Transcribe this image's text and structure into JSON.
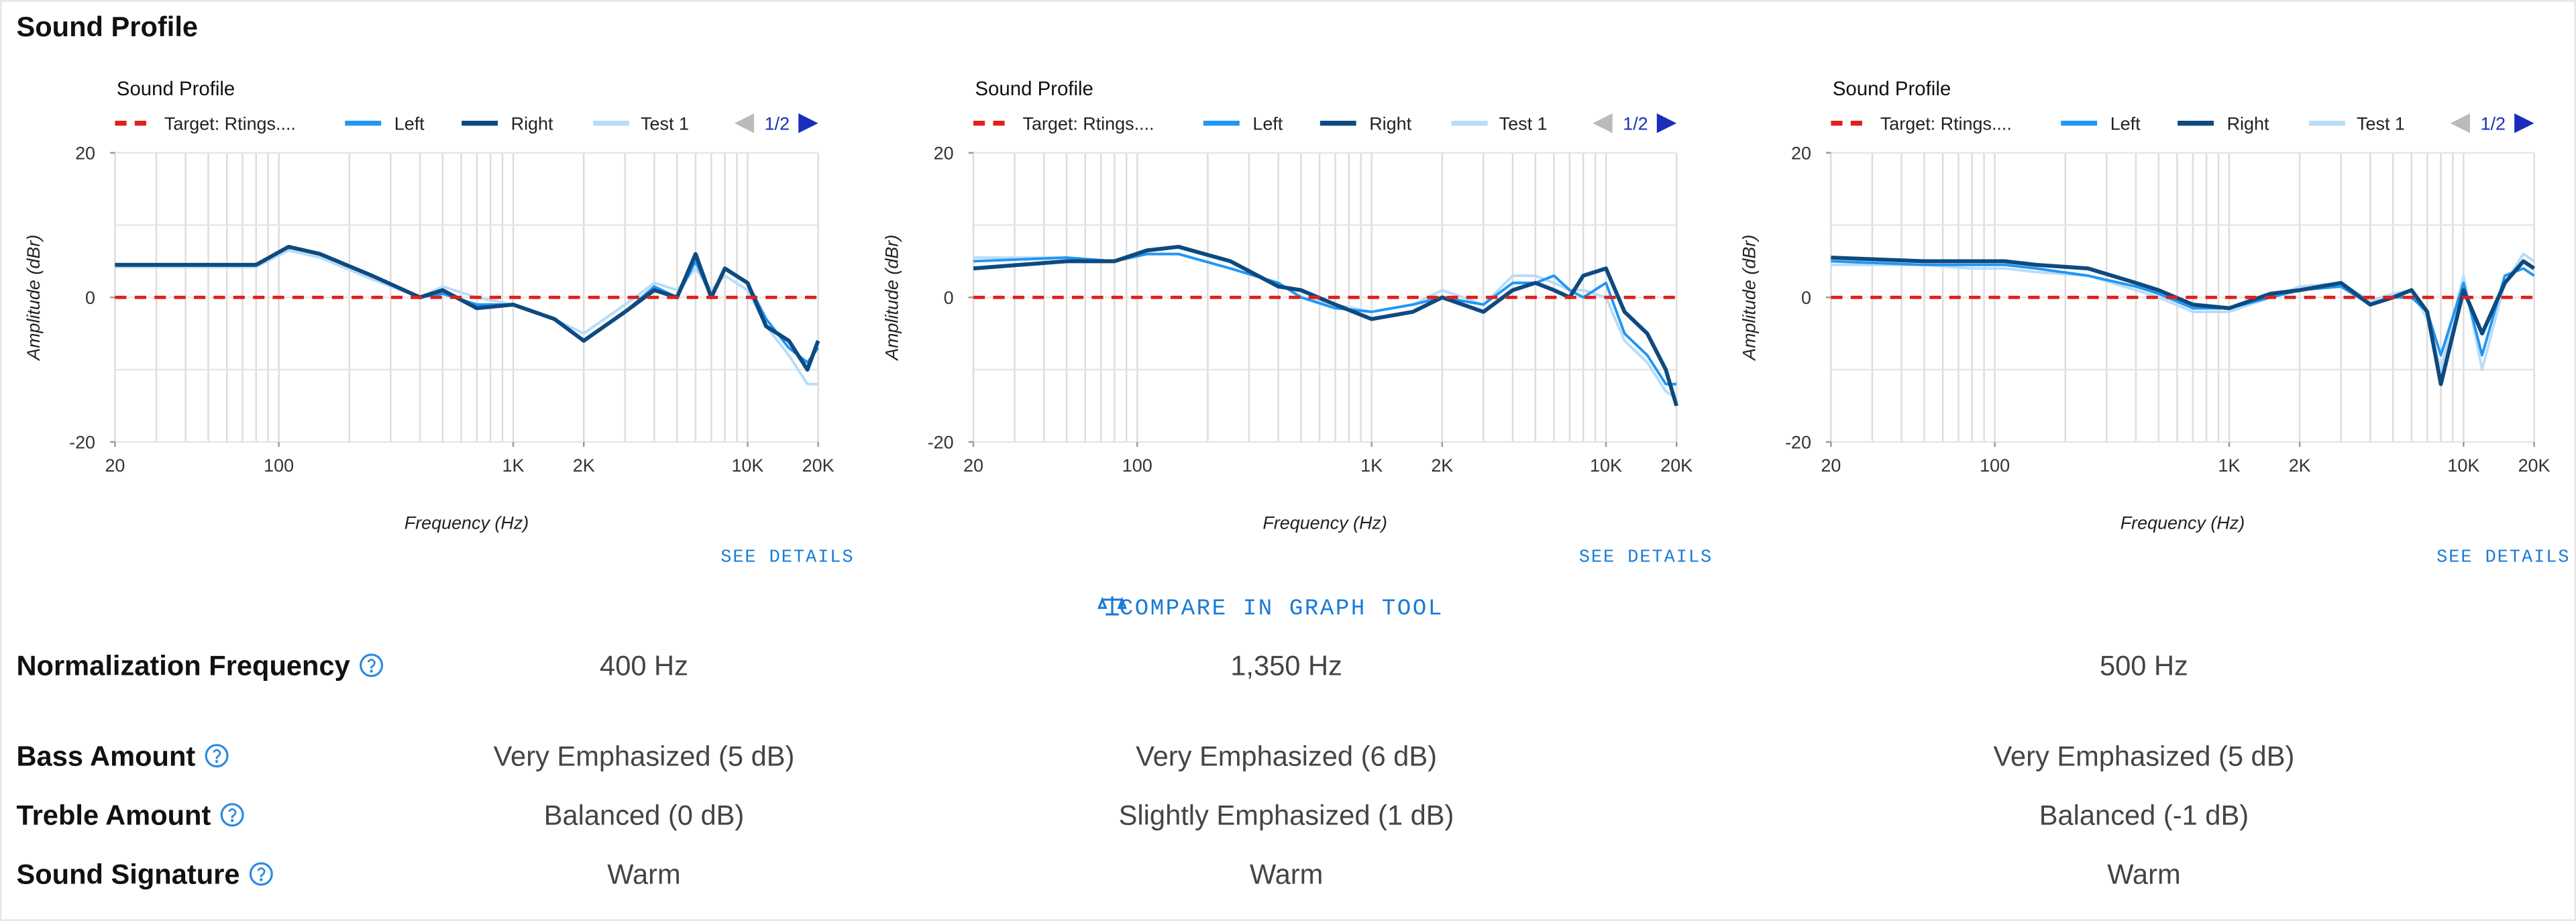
{
  "header": {
    "title": "Sound Profile"
  },
  "chart_data": [
    {
      "type": "line",
      "title": "Sound Profile",
      "legend_page": "1/2",
      "xlabel": "Frequency (Hz)",
      "ylabel": "Amplitude (dBr)",
      "xscale": "log",
      "xlim": [
        20,
        20000
      ],
      "ylim": [
        -20,
        20
      ],
      "yticks": [
        20,
        0,
        -20
      ],
      "ygrid": [
        -20,
        -10,
        0,
        10,
        20
      ],
      "xticks": [
        20,
        100,
        {
          "value": 1000,
          "label": "1K"
        },
        {
          "value": 2000,
          "label": "2K"
        },
        {
          "value": 10000,
          "label": "10K"
        },
        {
          "value": 20000,
          "label": "20K"
        }
      ],
      "xgrid": [
        20,
        30,
        40,
        50,
        60,
        70,
        80,
        90,
        100,
        200,
        300,
        400,
        500,
        600,
        700,
        800,
        900,
        1000,
        2000,
        3000,
        4000,
        5000,
        6000,
        7000,
        8000,
        9000,
        10000,
        20000
      ],
      "x": [
        20,
        50,
        80,
        110,
        150,
        250,
        400,
        500,
        700,
        1000,
        1500,
        2000,
        3000,
        4000,
        5000,
        6000,
        7000,
        8000,
        10000,
        12000,
        15000,
        18000,
        20000
      ],
      "series": [
        {
          "name": "Target: Rtings....",
          "color": "#e0201c",
          "dashed": true,
          "values": [
            0,
            0,
            0,
            0,
            0,
            0,
            0,
            0,
            0,
            0,
            0,
            0,
            0,
            0,
            0,
            0,
            0,
            0,
            0,
            0,
            0,
            0,
            0
          ]
        },
        {
          "name": "Left",
          "color": "#2196f3",
          "values": [
            4.5,
            4.5,
            4.5,
            7,
            6,
            3,
            0,
            0.5,
            -1,
            -1,
            -3,
            -6,
            -2,
            1.5,
            0,
            5,
            0,
            4,
            2,
            -3,
            -7,
            -9,
            -7
          ]
        },
        {
          "name": "Right",
          "color": "#0d4a80",
          "values": [
            4.5,
            4.5,
            4.5,
            7,
            6,
            3,
            0,
            1,
            -1.5,
            -1,
            -3,
            -6,
            -2,
            1,
            0,
            6,
            0,
            4,
            2,
            -4,
            -6,
            -10,
            -6
          ]
        },
        {
          "name": "Test 1",
          "color": "#b9dcf7",
          "values": [
            4.2,
            4.2,
            4.2,
            6.5,
            5.5,
            2.5,
            0,
            1.5,
            0,
            -1,
            -3,
            -5,
            -1,
            2,
            1,
            4,
            1,
            3,
            1,
            -4,
            -8,
            -12,
            -12
          ]
        }
      ],
      "link": "SEE DETAILS"
    },
    {
      "type": "line",
      "title": "Sound Profile",
      "legend_page": "1/2",
      "xlabel": "Frequency (Hz)",
      "ylabel": "Amplitude (dBr)",
      "xscale": "log",
      "xlim": [
        20,
        20000
      ],
      "ylim": [
        -20,
        20
      ],
      "yticks": [
        20,
        0,
        -20
      ],
      "ygrid": [
        -20,
        -10,
        0,
        10,
        20
      ],
      "xticks": [
        20,
        100,
        {
          "value": 1000,
          "label": "1K"
        },
        {
          "value": 2000,
          "label": "2K"
        },
        {
          "value": 10000,
          "label": "10K"
        },
        {
          "value": 20000,
          "label": "20K"
        }
      ],
      "xgrid": [
        20,
        30,
        40,
        50,
        60,
        70,
        80,
        90,
        100,
        200,
        300,
        400,
        500,
        600,
        700,
        800,
        900,
        1000,
        2000,
        3000,
        4000,
        5000,
        6000,
        7000,
        8000,
        9000,
        10000,
        20000
      ],
      "x": [
        20,
        50,
        80,
        110,
        150,
        250,
        400,
        500,
        700,
        1000,
        1500,
        2000,
        3000,
        4000,
        5000,
        6000,
        7000,
        8000,
        10000,
        12000,
        15000,
        18000,
        20000
      ],
      "series": [
        {
          "name": "Target: Rtings....",
          "color": "#e0201c",
          "dashed": true,
          "values": [
            0,
            0,
            0,
            0,
            0,
            0,
            0,
            0,
            0,
            0,
            0,
            0,
            0,
            0,
            0,
            0,
            0,
            0,
            0,
            0,
            0,
            0,
            0
          ]
        },
        {
          "name": "Left",
          "color": "#2196f3",
          "values": [
            5,
            5.5,
            5,
            6,
            6,
            4,
            2,
            0,
            -1.5,
            -2,
            -1,
            0,
            -1,
            2,
            2,
            3,
            1,
            0,
            2,
            -5,
            -8,
            -12,
            -12
          ]
        },
        {
          "name": "Right",
          "color": "#0d4a80",
          "values": [
            4,
            5,
            5,
            6.5,
            7,
            5,
            1.5,
            1,
            -1,
            -3,
            -2,
            0,
            -2,
            1,
            2,
            1,
            0,
            3,
            4,
            -2,
            -5,
            -10,
            -15
          ]
        },
        {
          "name": "Test 1",
          "color": "#b9dcf7",
          "values": [
            5.5,
            5.5,
            5,
            6,
            6,
            4,
            2,
            0,
            -1,
            -2,
            -1,
            1,
            -1,
            3,
            3,
            2,
            1,
            1,
            0,
            -6,
            -9,
            -13,
            -14
          ]
        }
      ],
      "link": "SEE DETAILS"
    },
    {
      "type": "line",
      "title": "Sound Profile",
      "legend_page": "1/2",
      "xlabel": "Frequency (Hz)",
      "ylabel": "Amplitude (dBr)",
      "xscale": "log",
      "xlim": [
        20,
        20000
      ],
      "ylim": [
        -20,
        20
      ],
      "yticks": [
        20,
        0,
        -20
      ],
      "ygrid": [
        -20,
        -10,
        0,
        10,
        20
      ],
      "xticks": [
        20,
        100,
        {
          "value": 1000,
          "label": "1K"
        },
        {
          "value": 2000,
          "label": "2K"
        },
        {
          "value": 10000,
          "label": "10K"
        },
        {
          "value": 20000,
          "label": "20K"
        }
      ],
      "xgrid": [
        20,
        30,
        40,
        50,
        60,
        70,
        80,
        90,
        100,
        200,
        300,
        400,
        500,
        600,
        700,
        800,
        900,
        1000,
        2000,
        3000,
        4000,
        5000,
        6000,
        7000,
        8000,
        9000,
        10000,
        20000
      ],
      "x": [
        20,
        50,
        80,
        110,
        150,
        250,
        400,
        500,
        700,
        1000,
        1500,
        2000,
        3000,
        4000,
        5000,
        6000,
        7000,
        8000,
        10000,
        12000,
        15000,
        18000,
        20000
      ],
      "series": [
        {
          "name": "Target: Rtings....",
          "color": "#e0201c",
          "dashed": true,
          "values": [
            0,
            0,
            0,
            0,
            0,
            0,
            0,
            0,
            0,
            0,
            0,
            0,
            0,
            0,
            0,
            0,
            0,
            0,
            0,
            0,
            0,
            0,
            0
          ]
        },
        {
          "name": "Left",
          "color": "#2196f3",
          "values": [
            5,
            4.5,
            4.5,
            4.5,
            4,
            3,
            1.5,
            0.5,
            -1.5,
            -1.5,
            0,
            1,
            1.5,
            -1,
            0,
            0,
            -2,
            -8,
            2,
            -8,
            3,
            4,
            3
          ]
        },
        {
          "name": "Right",
          "color": "#0d4a80",
          "values": [
            5.5,
            5,
            5,
            5,
            4.5,
            4,
            2,
            1,
            -1,
            -1.5,
            0.5,
            1,
            2,
            -1,
            0,
            1,
            -2,
            -12,
            1,
            -5,
            2,
            5,
            4
          ]
        },
        {
          "name": "Test 1",
          "color": "#b9dcf7",
          "values": [
            4.5,
            4.5,
            4,
            4,
            3.5,
            3,
            1,
            0,
            -2,
            -2,
            0,
            1.5,
            2,
            -0.5,
            0.5,
            1,
            -3,
            -10,
            3,
            -10,
            2,
            6,
            5
          ]
        }
      ],
      "link": "SEE DETAILS"
    }
  ],
  "compare": "COMPARE IN GRAPH TOOL",
  "table": {
    "rows": [
      [
        "Normalization Frequency",
        "400 Hz",
        "1,350 Hz",
        "500 Hz"
      ],
      [
        "Bass Amount",
        "Very Emphasized (5 dB)",
        "Very Emphasized (6 dB)",
        "Very Emphasized (5 dB)"
      ],
      [
        "Treble Amount",
        "Balanced (0 dB)",
        "Slightly Emphasized (1 dB)",
        "Balanced (-1 dB)"
      ],
      [
        "Sound Signature",
        "Warm",
        "Warm",
        "Warm"
      ]
    ]
  }
}
